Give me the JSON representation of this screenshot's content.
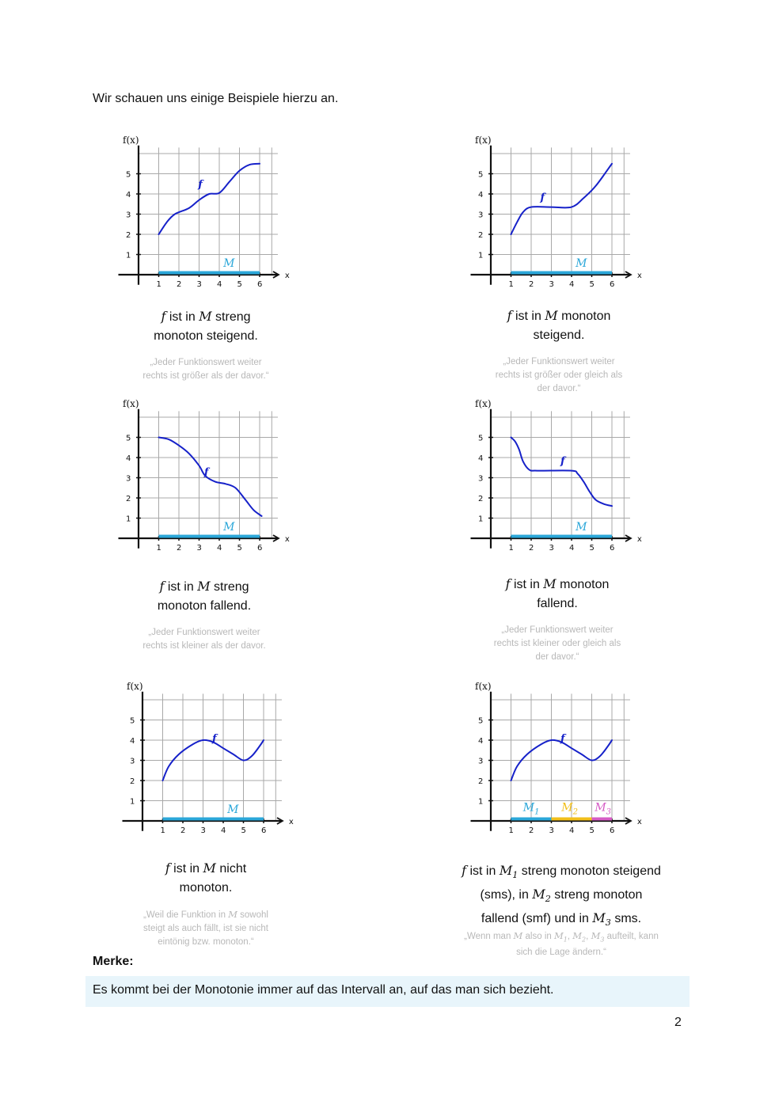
{
  "intro": "Wir schauen uns einige Beispiele hierzu an.",
  "colors": {
    "curve": "#1621c9",
    "interval": "#2ba7d9",
    "m2": "#f2bf1a",
    "m3": "#d65cc5",
    "grid": "#a8a8a8",
    "note": "#b8b8b8",
    "merke_bg": "#e8f5fb"
  },
  "axis": {
    "y_label": "f(x)",
    "x_label": "x",
    "x_ticks": [
      "1",
      "2",
      "3",
      "4",
      "5",
      "6"
    ],
    "y_ticks": [
      "1",
      "2",
      "3",
      "4",
      "5"
    ]
  },
  "graphs": [
    {
      "id": "g1",
      "function_label": "f",
      "interval_labels": [
        "M"
      ],
      "curve_points": [
        [
          1,
          2
        ],
        [
          1.4,
          2.6
        ],
        [
          1.8,
          3
        ],
        [
          2.5,
          3.3
        ],
        [
          3,
          3.7
        ],
        [
          3.5,
          4
        ],
        [
          4,
          4.05
        ],
        [
          4.5,
          4.6
        ],
        [
          5,
          5.15
        ],
        [
          5.5,
          5.45
        ],
        [
          6,
          5.5
        ]
      ],
      "caption_lines": [
        "{f} ist in {M} streng",
        "monoton steigend."
      ],
      "note_lines": [
        "„Jeder Funktionswert weiter",
        "rechts ist größer als der davor.“"
      ]
    },
    {
      "id": "g2",
      "function_label": "f",
      "interval_labels": [
        "M"
      ],
      "curve_points": [
        [
          1,
          2
        ],
        [
          1.3,
          2.6
        ],
        [
          1.6,
          3.1
        ],
        [
          2,
          3.35
        ],
        [
          3,
          3.35
        ],
        [
          4,
          3.35
        ],
        [
          4.6,
          3.8
        ],
        [
          5.2,
          4.4
        ],
        [
          6,
          5.5
        ]
      ],
      "caption_lines": [
        "{f} ist in {M} monoton",
        "steigend."
      ],
      "note_lines": [
        "„Jeder Funktionswert weiter",
        "rechts ist größer oder gleich als",
        "der davor.“"
      ]
    },
    {
      "id": "g3",
      "function_label": "f",
      "interval_labels": [
        "M"
      ],
      "curve_points": [
        [
          1,
          5
        ],
        [
          1.5,
          4.9
        ],
        [
          2,
          4.6
        ],
        [
          2.5,
          4.2
        ],
        [
          3,
          3.6
        ],
        [
          3.3,
          3.1
        ],
        [
          3.8,
          2.8
        ],
        [
          4.3,
          2.7
        ],
        [
          4.8,
          2.5
        ],
        [
          5.3,
          1.9
        ],
        [
          5.7,
          1.4
        ],
        [
          6.1,
          1.1
        ]
      ],
      "caption_lines": [
        "{f} ist in {M} streng",
        "monoton fallend."
      ],
      "note_lines": [
        "„Jeder Funktionswert weiter",
        "rechts ist kleiner als der davor."
      ]
    },
    {
      "id": "g4",
      "function_label": "f",
      "interval_labels": [
        "M"
      ],
      "curve_points": [
        [
          1,
          5
        ],
        [
          1.2,
          4.8
        ],
        [
          1.4,
          4.4
        ],
        [
          1.6,
          3.8
        ],
        [
          1.9,
          3.4
        ],
        [
          2.3,
          3.35
        ],
        [
          4,
          3.35
        ],
        [
          4.3,
          3.2
        ],
        [
          4.6,
          2.8
        ],
        [
          4.9,
          2.3
        ],
        [
          5.2,
          1.9
        ],
        [
          5.6,
          1.7
        ],
        [
          6,
          1.6
        ]
      ],
      "caption_lines": [
        "{f} ist in {M} monoton",
        "fallend."
      ],
      "note_lines": [
        "„Jeder Funktionswert weiter",
        "rechts ist kleiner oder gleich als",
        "der davor.“"
      ]
    },
    {
      "id": "g5",
      "function_label": "f",
      "interval_labels": [
        "M"
      ],
      "curve_points": [
        [
          1,
          2
        ],
        [
          1.3,
          2.7
        ],
        [
          1.8,
          3.3
        ],
        [
          2.5,
          3.8
        ],
        [
          3,
          4
        ],
        [
          3.5,
          3.9
        ],
        [
          4,
          3.6
        ],
        [
          4.5,
          3.3
        ],
        [
          5,
          3
        ],
        [
          5.4,
          3.2
        ],
        [
          5.8,
          3.7
        ],
        [
          6,
          4
        ]
      ],
      "caption_lines": [
        "{f} ist in {M} nicht",
        "monoton."
      ],
      "note_lines": [
        "„Weil die Funktion in {M} sowohl",
        "steigt als auch fällt, ist sie nicht",
        "eintönig bzw. monoton.“"
      ]
    },
    {
      "id": "g6",
      "function_label": "f",
      "interval_labels": [
        "M1",
        "M2",
        "M3"
      ],
      "curve_points": [
        [
          1,
          2
        ],
        [
          1.3,
          2.7
        ],
        [
          1.8,
          3.3
        ],
        [
          2.5,
          3.8
        ],
        [
          3,
          4
        ],
        [
          3.5,
          3.9
        ],
        [
          4,
          3.6
        ],
        [
          4.5,
          3.3
        ],
        [
          5,
          3
        ],
        [
          5.4,
          3.2
        ],
        [
          5.8,
          3.7
        ],
        [
          6,
          4
        ]
      ],
      "caption_lines": [
        "{f} ist in {M1} streng monoton steigend",
        "(sms), in {M2} streng monoton",
        "fallend (smf) und in {M3} sms."
      ],
      "note_lines": [
        "„Wenn man {M} also in {M1}, {M2}, {M3} aufteilt, kann",
        "sich die Lage ändern.“"
      ]
    }
  ],
  "merke": {
    "title": "Merke:",
    "text": "Es kommt bei der Monotonie immer auf das Intervall an, auf das man sich bezieht."
  },
  "page_number": "2"
}
